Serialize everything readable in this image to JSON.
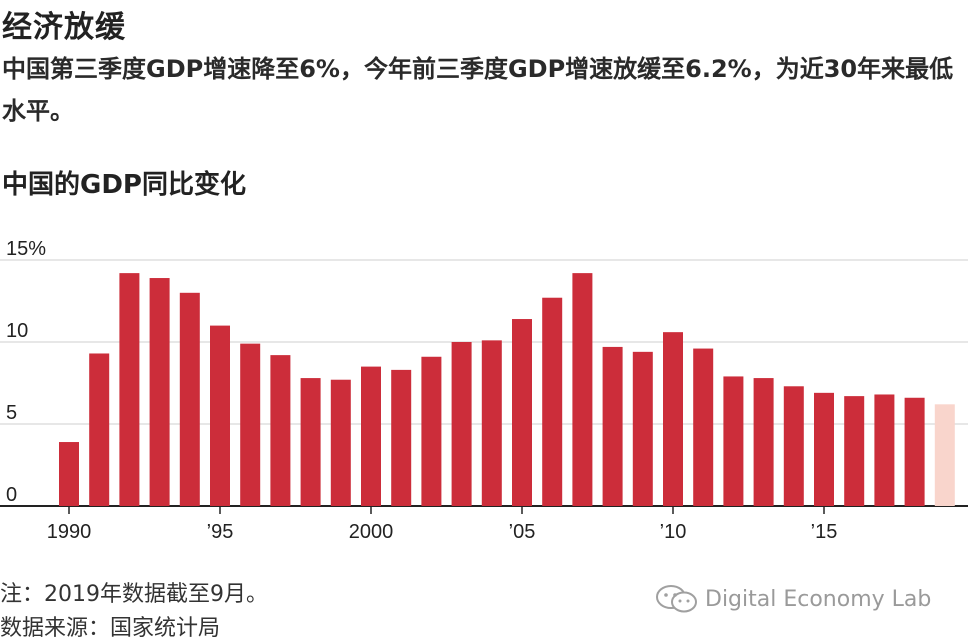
{
  "title": "经济放缓",
  "subtitle": "中国第三季度GDP增速降至6%，今年前三季度GDP增速放缓至6.2%，为近30年来最低水平。",
  "chart_heading": "中国的GDP同比变化",
  "note": "注：2019年数据截至9月。",
  "source": "数据来源：国家统计局",
  "watermark": "Digital Economy Lab",
  "colors": {
    "bar": "#cc2d3a",
    "bar_partial": "#f9d5cc",
    "axis": "#222222",
    "grid": "#cfcfcf"
  },
  "chart_data": {
    "type": "bar",
    "title": "中国的GDP同比变化",
    "xlabel": "",
    "ylabel": "",
    "ylim": [
      0,
      15
    ],
    "y_ticks": [
      0,
      5,
      10,
      15
    ],
    "y_tick_labels": [
      "0",
      "5",
      "10",
      "15%"
    ],
    "x_tick_labels": [
      {
        "year": 1990,
        "label": "1990"
      },
      {
        "year": 1995,
        "label": "’95"
      },
      {
        "year": 2000,
        "label": "2000"
      },
      {
        "year": 2005,
        "label": "’05"
      },
      {
        "year": 2010,
        "label": "’10"
      },
      {
        "year": 2015,
        "label": "’15"
      }
    ],
    "grid": true,
    "categories": [
      1990,
      1991,
      1992,
      1993,
      1994,
      1995,
      1996,
      1997,
      1998,
      1999,
      2000,
      2001,
      2002,
      2003,
      2004,
      2005,
      2006,
      2007,
      2008,
      2009,
      2010,
      2011,
      2012,
      2013,
      2014,
      2015,
      2016,
      2017,
      2018,
      2019
    ],
    "values": [
      3.9,
      9.3,
      14.2,
      13.9,
      13.0,
      11.0,
      9.9,
      9.2,
      7.8,
      7.7,
      8.5,
      8.3,
      9.1,
      10.0,
      10.1,
      11.4,
      12.7,
      14.2,
      9.7,
      9.4,
      10.6,
      9.6,
      7.9,
      7.8,
      7.3,
      6.9,
      6.7,
      6.8,
      6.6,
      6.2
    ],
    "highlight": {
      "2019": "partial year"
    }
  }
}
